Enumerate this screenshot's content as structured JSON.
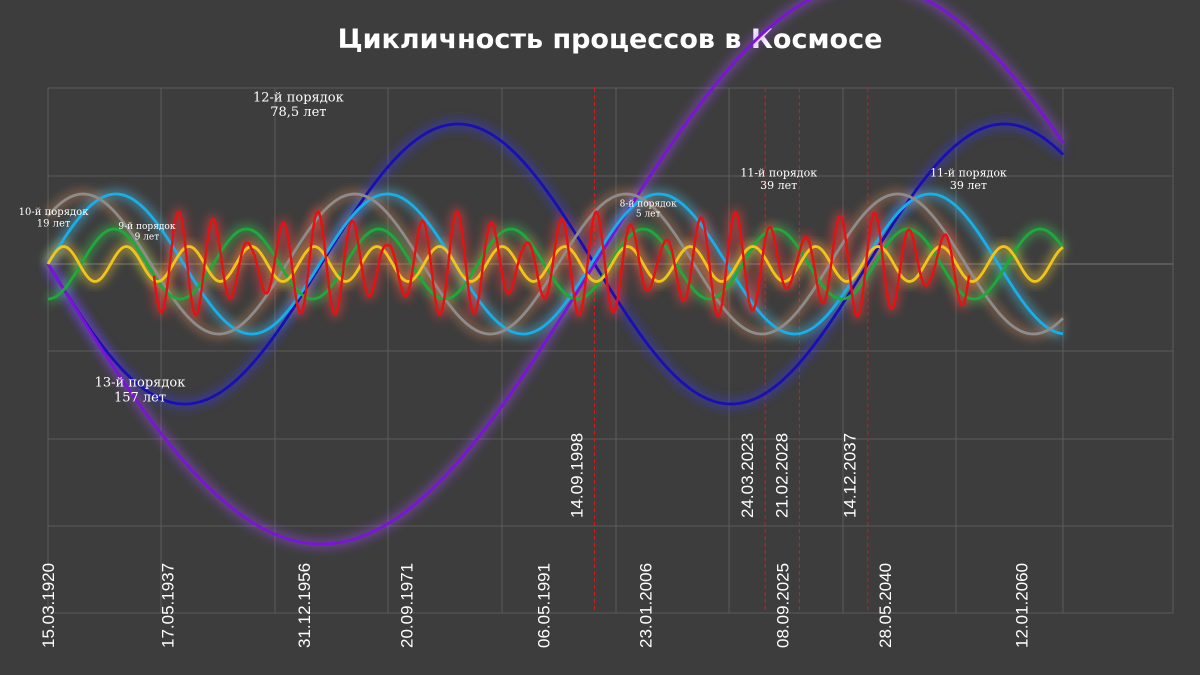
{
  "chart_data": {
    "type": "line",
    "title": "Цикличность процессов в Космосе",
    "x_range": [
      "1920-03-15",
      "2065-12-31"
    ],
    "ylim": [
      -1.6,
      1.0
    ],
    "grid": true,
    "x_ticks": [
      {
        "date": "1920-03-15",
        "label": "15.03.1920"
      },
      {
        "date": "1937-05-17",
        "label": "17.05.1937"
      },
      {
        "date": "1956-12-31",
        "label": "31.12.1956"
      },
      {
        "date": "1971-09-20",
        "label": "20.09.1971"
      },
      {
        "date": "1991-05-06",
        "label": "06.05.1991"
      },
      {
        "date": "2006-01-23",
        "label": "23.01.2006"
      },
      {
        "date": "2025-09-08",
        "label": "08.09.2025"
      },
      {
        "date": "2040-05-28",
        "label": "28.05.2040"
      },
      {
        "date": "2060-01-12",
        "label": "12.01.2060"
      }
    ],
    "markers": [
      {
        "date": "1998-09-14",
        "label": "14.09.1998"
      },
      {
        "date": "2023-03-24",
        "label": "24.03.2023"
      },
      {
        "date": "2028-02-21",
        "label": "21.02.2028"
      },
      {
        "date": "2037-12-14",
        "label": "14.12.2037"
      }
    ],
    "series": [
      {
        "color": "#1a0fb0",
        "glow": "#3b3bff",
        "amplitude": 0.8,
        "period_years": 78.5,
        "phase": 0,
        "start": "1920-03-15",
        "end": "2065-12-31"
      },
      {
        "color": "#7a14d6",
        "glow": "#a64dff",
        "amplitude": 1.6,
        "period_years": 157,
        "phase": 0,
        "start": "1920-03-15",
        "end": "2065-12-31"
      },
      {
        "color": "#18aee8",
        "glow": "#4fd1ff",
        "amplitude": 0.4,
        "period_years": 39,
        "phase": 3.14159,
        "start": "1920-03-15",
        "end": "2065-12-31"
      },
      {
        "color": "#8c8c8c",
        "glow": "#d28a5a",
        "amplitude": 0.4,
        "period_years": 39,
        "phase": 3.9,
        "start": "1920-03-15",
        "end": "2065-12-31"
      },
      {
        "color": "#1fa93a",
        "glow": "#3ddc5c",
        "amplitude": 0.2,
        "period_years": 19,
        "phase": 1.57,
        "start": "1920-03-15",
        "end": "2065-12-31"
      },
      {
        "color": "#f2c318",
        "glow": "#ffd740",
        "amplitude": 0.1,
        "period_years": 9,
        "phase": 3.14159,
        "start": "1920-03-15",
        "end": "2065-12-31"
      },
      {
        "color": "#e41212",
        "glow": "#ff4040",
        "amplitude": 0.3,
        "period_years": 5,
        "phase": 0,
        "start": "1935-06-01",
        "end": "2052-07-01",
        "modulated": true
      }
    ],
    "annotations": [
      {
        "lines": [
          "12-й порядок",
          "78,5 лет"
        ],
        "date": "1956-03-01",
        "y": 0.93,
        "size": 13
      },
      {
        "lines": [
          "13-й порядок",
          "157 лет"
        ],
        "date": "1933-06-01",
        "y": -0.7,
        "size": 13
      },
      {
        "lines": [
          "10-й порядок",
          "19 лет"
        ],
        "date": "1921-01-01",
        "y": 0.28,
        "size": 10
      },
      {
        "lines": [
          "9-й порядок",
          "9 лет"
        ],
        "date": "1934-06-01",
        "y": 0.2,
        "size": 9
      },
      {
        "lines": [
          "8-й порядок",
          "5 лет"
        ],
        "date": "2006-06-01",
        "y": 0.33,
        "size": 9
      },
      {
        "lines": [
          "11-й порядок",
          "39 лет"
        ],
        "date": "2025-03-01",
        "y": 0.5,
        "size": 11
      },
      {
        "lines": [
          "11-й порядок",
          "39 лет"
        ],
        "date": "2052-06-01",
        "y": 0.5,
        "size": 11
      }
    ]
  }
}
